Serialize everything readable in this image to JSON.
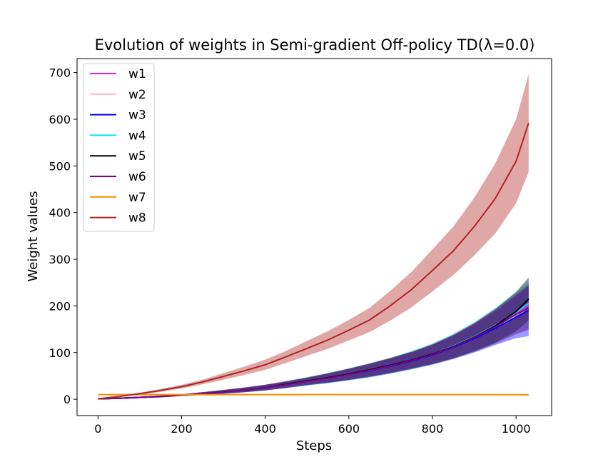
{
  "chart_data": {
    "type": "line",
    "title": "Evolution of weights in Semi-gradient Off-policy TD(λ=0.0)",
    "xlabel": "Steps",
    "ylabel": "Weight values",
    "xlim": [
      -50,
      1085
    ],
    "ylim": [
      -35,
      730
    ],
    "xticks": [
      0,
      200,
      400,
      600,
      800,
      1000
    ],
    "yticks": [
      0,
      100,
      200,
      300,
      400,
      500,
      600,
      700
    ],
    "grid": false,
    "legend_position": "top-left",
    "x": [
      0,
      50,
      100,
      150,
      200,
      250,
      300,
      350,
      400,
      450,
      500,
      550,
      600,
      650,
      700,
      750,
      800,
      850,
      900,
      950,
      1000,
      1030
    ],
    "series": [
      {
        "name": "w1",
        "color": "#e41ae4",
        "values": [
          1,
          2,
          4,
          6,
          9,
          12,
          16,
          20,
          25,
          31,
          38,
          45,
          53,
          62,
          72,
          84,
          97,
          114,
          134,
          158,
          185,
          200
        ],
        "band": [
          0,
          1,
          1,
          2,
          2,
          3,
          4,
          5,
          6,
          7,
          8,
          10,
          12,
          14,
          16,
          18,
          21,
          25,
          30,
          36,
          42,
          46
        ]
      },
      {
        "name": "w2",
        "color": "#ffb6c1",
        "values": [
          1,
          2,
          4,
          6,
          9,
          12,
          16,
          20,
          25,
          31,
          38,
          45,
          53,
          62,
          72,
          83,
          96,
          112,
          131,
          154,
          180,
          195
        ],
        "band": [
          0,
          1,
          1,
          2,
          2,
          3,
          4,
          5,
          6,
          7,
          8,
          10,
          12,
          14,
          16,
          18,
          21,
          25,
          30,
          36,
          42,
          46
        ]
      },
      {
        "name": "w3",
        "color": "#0000ff",
        "values": [
          1,
          2,
          4,
          6,
          9,
          12,
          16,
          20,
          25,
          31,
          38,
          45,
          53,
          61,
          71,
          82,
          95,
          111,
          130,
          152,
          176,
          190
        ],
        "band": [
          0,
          1,
          1,
          2,
          2,
          3,
          4,
          5,
          6,
          7,
          8,
          10,
          12,
          14,
          16,
          18,
          21,
          25,
          30,
          36,
          45,
          55
        ]
      },
      {
        "name": "w4",
        "color": "#00e5ee",
        "values": [
          1,
          2,
          4,
          6,
          9,
          12,
          16,
          20,
          25,
          31,
          38,
          45,
          53,
          62,
          72,
          84,
          97,
          114,
          134,
          158,
          186,
          205
        ],
        "band": [
          0,
          1,
          1,
          2,
          2,
          3,
          4,
          5,
          6,
          7,
          9,
          11,
          13,
          15,
          17,
          20,
          23,
          27,
          32,
          38,
          44,
          48
        ]
      },
      {
        "name": "w5",
        "color": "#000000",
        "values": [
          1,
          2,
          4,
          6,
          9,
          12,
          16,
          20,
          25,
          32,
          39,
          46,
          54,
          63,
          73,
          84,
          97,
          113,
          133,
          157,
          188,
          215
        ],
        "band": [
          0,
          1,
          1,
          2,
          2,
          3,
          4,
          5,
          6,
          7,
          8,
          10,
          12,
          14,
          16,
          18,
          21,
          25,
          30,
          36,
          42,
          46
        ]
      },
      {
        "name": "w6",
        "color": "#800080",
        "values": [
          1,
          2,
          4,
          6,
          9,
          12,
          16,
          20,
          25,
          31,
          38,
          45,
          53,
          62,
          72,
          83,
          96,
          112,
          132,
          155,
          182,
          195
        ],
        "band": [
          0,
          1,
          1,
          2,
          2,
          3,
          4,
          5,
          6,
          7,
          8,
          10,
          12,
          14,
          16,
          18,
          21,
          25,
          30,
          36,
          42,
          46
        ]
      },
      {
        "name": "w7",
        "color": "#ff8c00",
        "values": [
          10,
          10,
          10,
          10,
          10,
          10,
          10,
          10,
          10,
          10,
          10,
          10,
          10,
          10,
          10,
          10,
          10,
          10,
          10,
          9.8,
          9.6,
          9.5
        ],
        "band": [
          0.2,
          0.2,
          0.2,
          0.2,
          0.2,
          0.2,
          0.2,
          0.2,
          0.2,
          0.2,
          0.2,
          0.2,
          0.2,
          0.2,
          0.2,
          0.2,
          0.2,
          0.2,
          0.2,
          0.2,
          0.2,
          0.2
        ]
      },
      {
        "name": "w8",
        "color": "#b22222",
        "values": [
          1,
          6,
          12,
          19,
          27,
          37,
          49,
          61,
          74,
          91,
          109,
          127,
          148,
          170,
          201,
          235,
          276,
          318,
          370,
          430,
          510,
          592
        ],
        "band": [
          0,
          1,
          2,
          3,
          4,
          5,
          7,
          9,
          11,
          13,
          16,
          19,
          22,
          26,
          32,
          38,
          45,
          52,
          62,
          75,
          90,
          105
        ]
      }
    ]
  }
}
